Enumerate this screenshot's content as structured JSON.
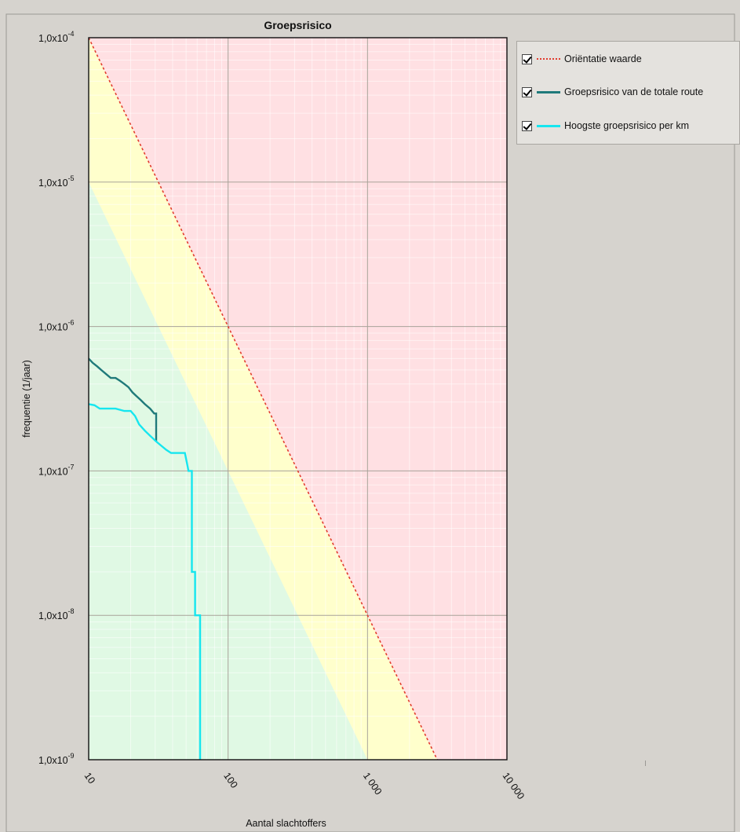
{
  "chart_data": {
    "type": "line",
    "title": "Groepsrisico",
    "xlabel": "Aantal slachtoffers",
    "ylabel": "frequentie (1/jaar)",
    "x_scale": "log",
    "y_scale": "log",
    "xlim": [
      10,
      10000
    ],
    "ylim": [
      1e-09,
      0.0001
    ],
    "x_ticks": [
      {
        "value": 10,
        "label": "10"
      },
      {
        "value": 100,
        "label": "100"
      },
      {
        "value": 1000,
        "label": "1 000"
      },
      {
        "value": 10000,
        "label": "10 000"
      }
    ],
    "y_ticks": [
      {
        "value": 0.0001,
        "mantissa": "1,0x10",
        "exp": "-4"
      },
      {
        "value": 1e-05,
        "mantissa": "1,0x10",
        "exp": "-5"
      },
      {
        "value": 1e-06,
        "mantissa": "1,0x10",
        "exp": "-6"
      },
      {
        "value": 1e-07,
        "mantissa": "1,0x10",
        "exp": "-7"
      },
      {
        "value": 1e-08,
        "mantissa": "1,0x10",
        "exp": "-8"
      },
      {
        "value": 1e-09,
        "mantissa": "1,0x10",
        "exp": "-9"
      }
    ],
    "grid": true,
    "zones": [
      {
        "name": "red",
        "color": "#ffe0e3",
        "description": "above orientation value"
      },
      {
        "name": "yellow",
        "color": "#ffffcc",
        "description": "between 0.1x and 1x orientation value"
      },
      {
        "name": "green",
        "color": "#e0f9e4",
        "description": "below 0.1x orientation value"
      }
    ],
    "series": [
      {
        "name": "Oriëntatie waarde",
        "style": "dotted",
        "color": "#e23b2e",
        "points": [
          [
            10,
            0.0001
          ],
          [
            3162,
            1e-09
          ]
        ]
      },
      {
        "name": "Groepsrisico van de totale route",
        "style": "solid",
        "color": "#1f7a7a",
        "points": [
          [
            10,
            6e-07
          ],
          [
            10.7,
            5.6e-07
          ],
          [
            11.5,
            5.3e-07
          ],
          [
            12.3,
            5e-07
          ],
          [
            13.3,
            4.7e-07
          ],
          [
            14.4,
            4.4e-07
          ],
          [
            15.6,
            4.4e-07
          ],
          [
            16.8,
            4.2e-07
          ],
          [
            18.0,
            4e-07
          ],
          [
            19.3,
            3.8e-07
          ],
          [
            20.6,
            3.5e-07
          ],
          [
            22.0,
            3.3e-07
          ],
          [
            23.6,
            3.1e-07
          ],
          [
            25.3,
            2.9e-07
          ],
          [
            27.6,
            2.7e-07
          ],
          [
            29.5,
            2.5e-07
          ],
          [
            30.5,
            2.5e-07
          ],
          [
            30.5,
            1.6e-07
          ]
        ]
      },
      {
        "name": "Hoogste groepsrisico per km",
        "style": "solid",
        "color": "#16e6ef",
        "points": [
          [
            10,
            2.9e-07
          ],
          [
            11.0,
            2.85e-07
          ],
          [
            12.0,
            2.7e-07
          ],
          [
            15.6,
            2.7e-07
          ],
          [
            18.0,
            2.6e-07
          ],
          [
            20.0,
            2.6e-07
          ],
          [
            21.5,
            2.4e-07
          ],
          [
            23.0,
            2.1e-07
          ],
          [
            25.3,
            1.9e-07
          ],
          [
            27.6,
            1.75e-07
          ],
          [
            30.5,
            1.6e-07
          ],
          [
            33.0,
            1.5e-07
          ],
          [
            36.0,
            1.4e-07
          ],
          [
            39.0,
            1.33e-07
          ],
          [
            49.0,
            1.33e-07
          ],
          [
            50.5,
            1.15e-07
          ],
          [
            52.0,
            1e-07
          ],
          [
            55.0,
            1e-07
          ],
          [
            55.0,
            2e-08
          ],
          [
            58.0,
            2e-08
          ],
          [
            58.0,
            1e-08
          ],
          [
            63.0,
            1e-08
          ],
          [
            63.0,
            1e-09
          ]
        ]
      }
    ]
  },
  "legend": {
    "items": [
      {
        "label": "Oriëntatie waarde",
        "checked": true
      },
      {
        "label": "Groepsrisico van de totale route",
        "checked": true
      },
      {
        "label": "Hoogste groepsrisico per km",
        "checked": true
      }
    ]
  }
}
